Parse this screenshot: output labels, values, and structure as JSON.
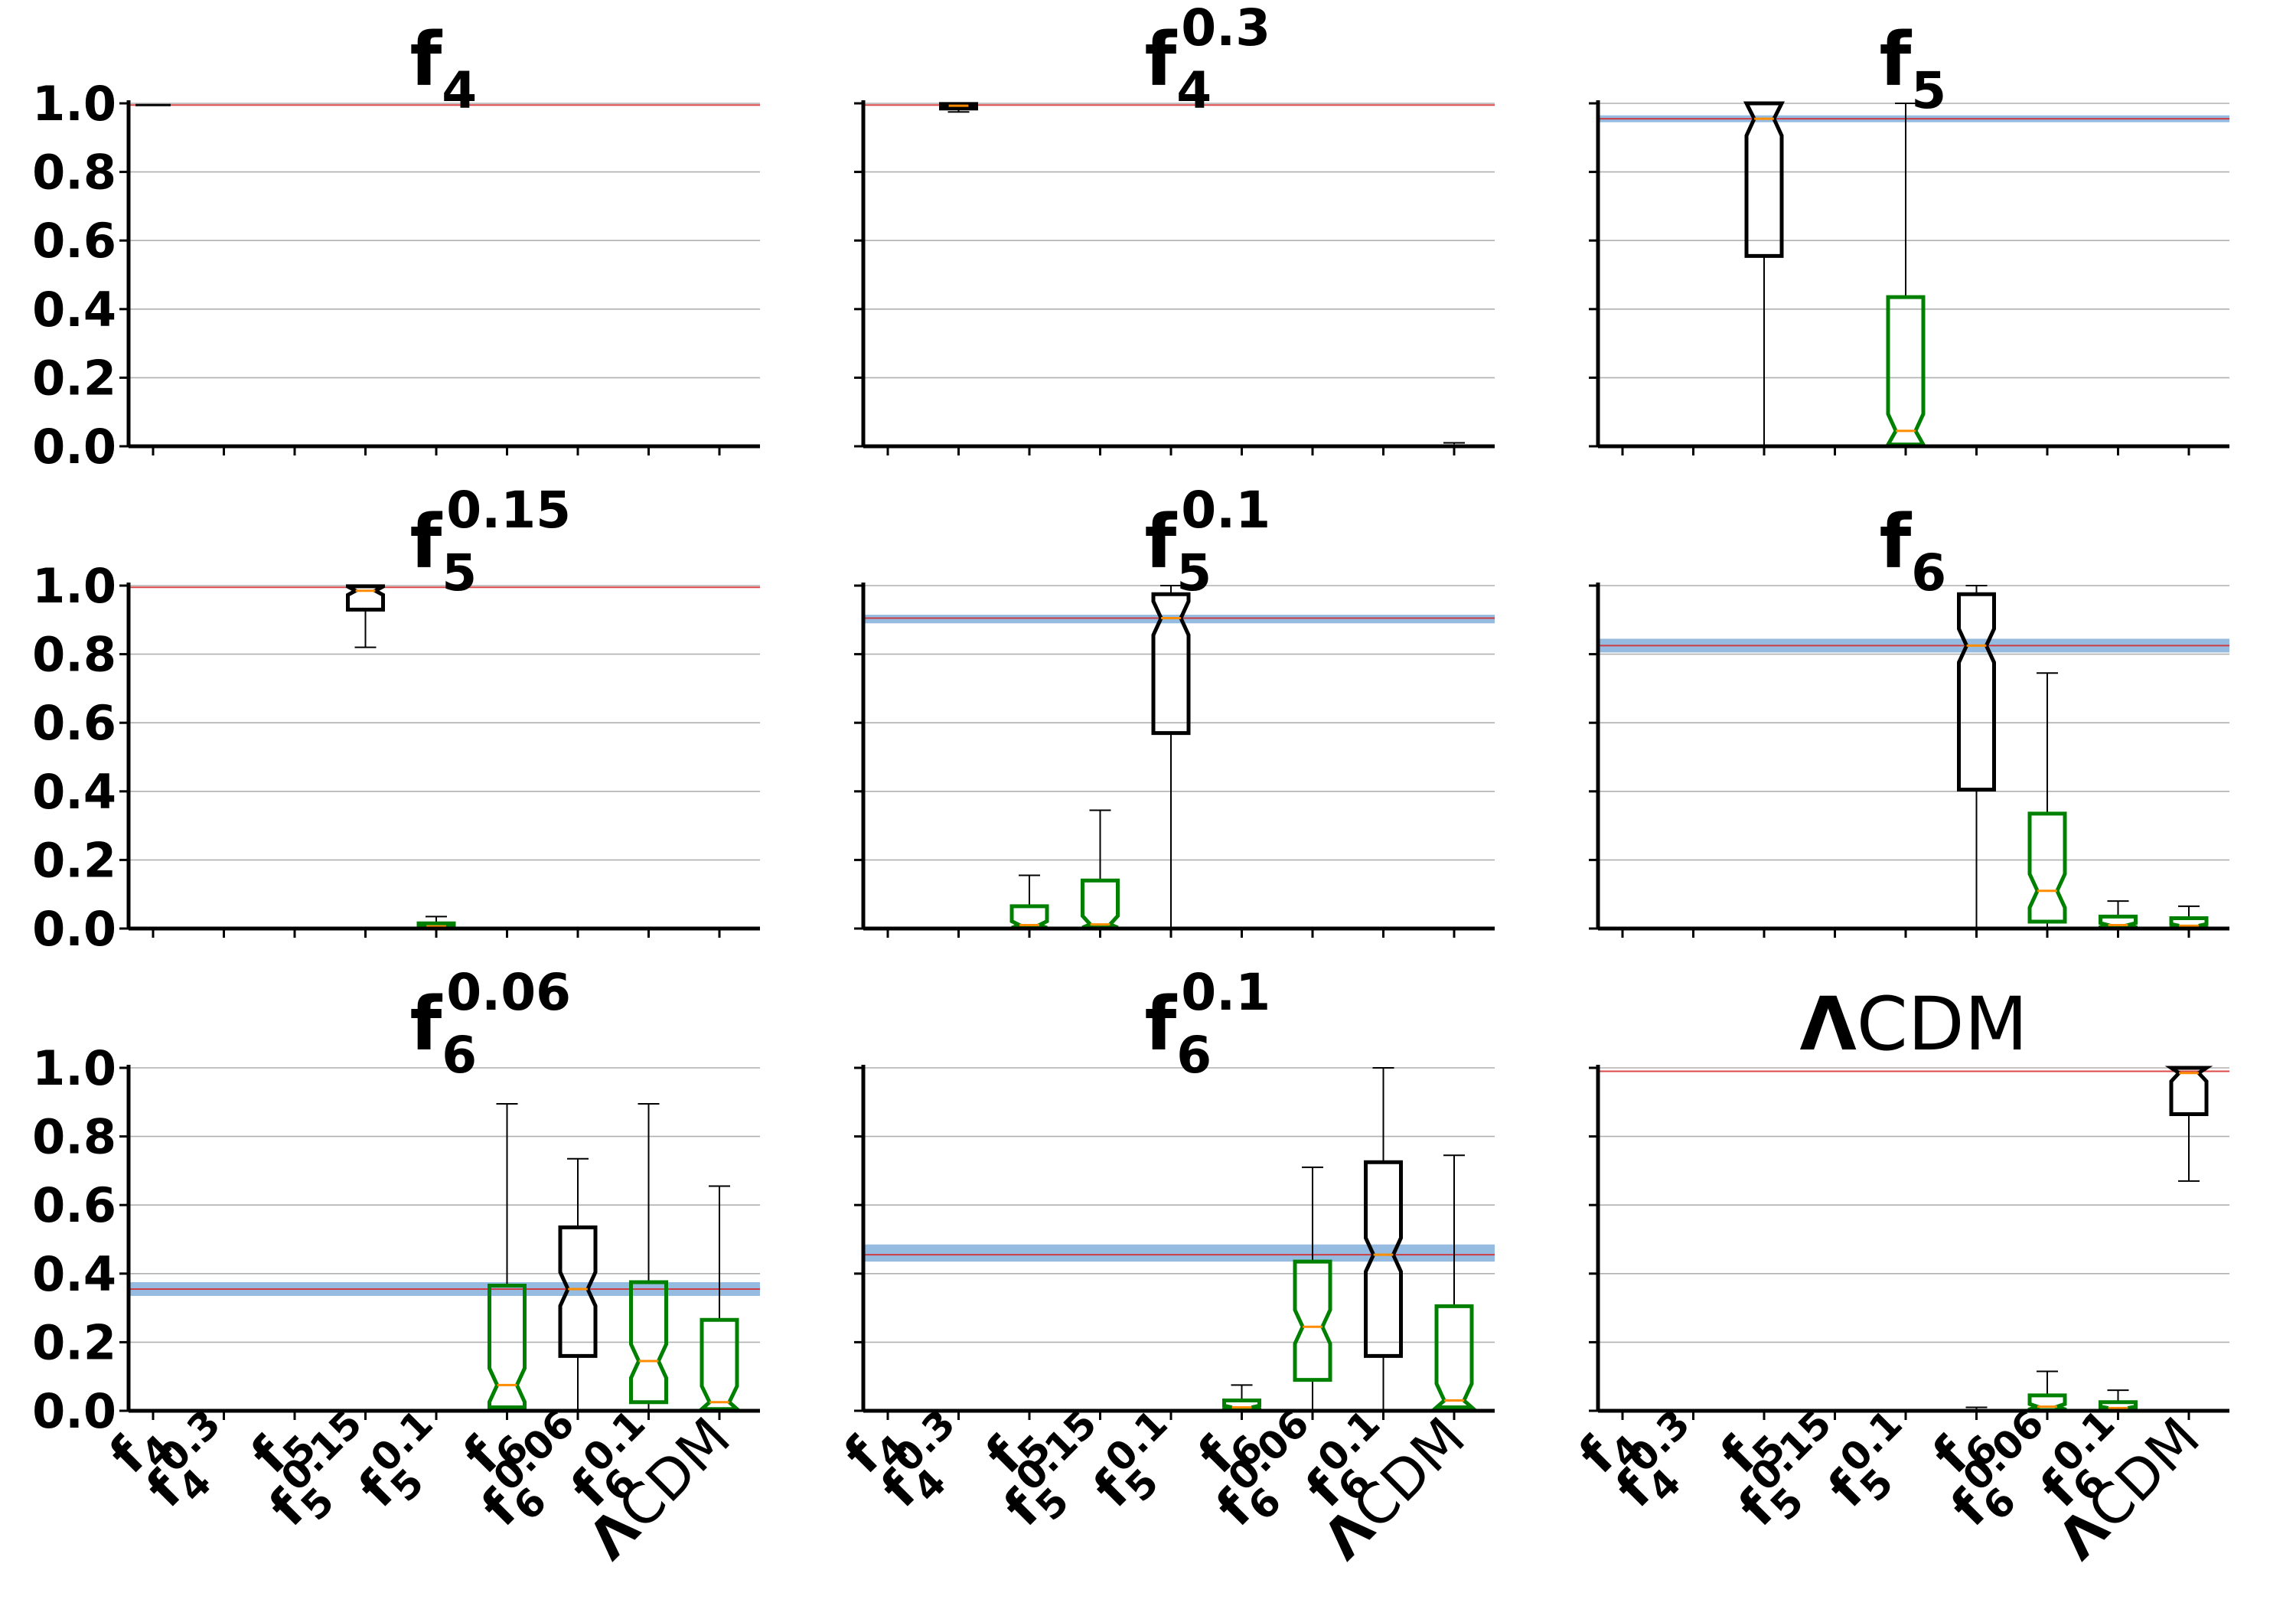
{
  "chart_data": {
    "type": "box",
    "layout": "3x3 grid",
    "y_range": [
      0,
      1
    ],
    "y_ticks": [
      "0.0",
      "0.2",
      "0.4",
      "0.6",
      "0.8",
      "1.0"
    ],
    "categories": [
      {
        "base": "f",
        "sub": "4",
        "sup": ""
      },
      {
        "base": "f",
        "sub": "4",
        "sup": "0.3"
      },
      {
        "base": "f",
        "sub": "5",
        "sup": ""
      },
      {
        "base": "f",
        "sub": "5",
        "sup": "0.15"
      },
      {
        "base": "f",
        "sub": "5",
        "sup": "0.1"
      },
      {
        "base": "f",
        "sub": "6",
        "sup": ""
      },
      {
        "base": "f",
        "sub": "6",
        "sup": "0.06"
      },
      {
        "base": "f",
        "sub": "6",
        "sup": "0.1"
      },
      {
        "base": "Λ",
        "sub": "",
        "sup": "",
        "rest": "CDM"
      }
    ],
    "colors": {
      "true_model_box": "#000000",
      "other_box": "#008000",
      "median": "#ff8c00",
      "reference_line": "#d62728",
      "band": "#7aaad8",
      "grid": "#b0b0b0"
    },
    "panels": [
      {
        "title": {
          "base": "f",
          "sub": "4",
          "sup": ""
        },
        "reference": 0.995,
        "band": null,
        "boxes": [
          {
            "cat": 0,
            "q1": 0.995,
            "med": 0.998,
            "q3": 1.0,
            "wlo": 0.995,
            "whi": 1.0,
            "color": "black"
          },
          {
            "cat": 1,
            "q1": 0,
            "med": 0,
            "q3": 0.001,
            "wlo": 0,
            "whi": 0.001,
            "color": "green"
          },
          {
            "cat": 2,
            "q1": 0,
            "med": 0,
            "q3": 0.001,
            "wlo": 0,
            "whi": 0.001,
            "color": "green"
          },
          {
            "cat": 3,
            "q1": 0,
            "med": 0,
            "q3": 0.001,
            "wlo": 0,
            "whi": 0.001,
            "color": "green"
          },
          {
            "cat": 4,
            "q1": 0,
            "med": 0,
            "q3": 0.001,
            "wlo": 0,
            "whi": 0.001,
            "color": "green"
          },
          {
            "cat": 5,
            "q1": 0,
            "med": 0,
            "q3": 0.001,
            "wlo": 0,
            "whi": 0.001,
            "color": "green"
          },
          {
            "cat": 6,
            "q1": 0,
            "med": 0,
            "q3": 0.001,
            "wlo": 0,
            "whi": 0.001,
            "color": "green"
          },
          {
            "cat": 7,
            "q1": 0,
            "med": 0,
            "q3": 0.001,
            "wlo": 0,
            "whi": 0.001,
            "color": "green"
          },
          {
            "cat": 8,
            "q1": 0,
            "med": 0,
            "q3": 0.001,
            "wlo": 0,
            "whi": 0.001,
            "color": "green"
          }
        ]
      },
      {
        "title": {
          "base": "f",
          "sub": "4",
          "sup": "0.3"
        },
        "reference": 0.995,
        "band": null,
        "boxes": [
          {
            "cat": 0,
            "q1": 0,
            "med": 0,
            "q3": 0.001,
            "wlo": 0,
            "whi": 0.001,
            "color": "green"
          },
          {
            "cat": 1,
            "q1": 0.985,
            "med": 0.993,
            "q3": 0.998,
            "wlo": 0.975,
            "whi": 1.0,
            "color": "black"
          },
          {
            "cat": 2,
            "q1": 0,
            "med": 0,
            "q3": 0.001,
            "wlo": 0,
            "whi": 0.001,
            "color": "green"
          },
          {
            "cat": 3,
            "q1": 0,
            "med": 0,
            "q3": 0.001,
            "wlo": 0,
            "whi": 0.001,
            "color": "green"
          },
          {
            "cat": 4,
            "q1": 0,
            "med": 0,
            "q3": 0.001,
            "wlo": 0,
            "whi": 0.001,
            "color": "green"
          },
          {
            "cat": 5,
            "q1": 0,
            "med": 0,
            "q3": 0.001,
            "wlo": 0,
            "whi": 0.001,
            "color": "green"
          },
          {
            "cat": 6,
            "q1": 0,
            "med": 0,
            "q3": 0.001,
            "wlo": 0,
            "whi": 0.001,
            "color": "green"
          },
          {
            "cat": 7,
            "q1": 0,
            "med": 0,
            "q3": 0.001,
            "wlo": 0,
            "whi": 0.001,
            "color": "green"
          },
          {
            "cat": 8,
            "q1": 0,
            "med": 0.002,
            "q3": 0.006,
            "wlo": 0,
            "whi": 0.01,
            "color": "green"
          }
        ]
      },
      {
        "title": {
          "base": "f",
          "sub": "5",
          "sup": ""
        },
        "reference": 0.955,
        "band": [
          0.945,
          0.965
        ],
        "boxes": [
          {
            "cat": 0,
            "q1": 0,
            "med": 0,
            "q3": 0.001,
            "wlo": 0,
            "whi": 0.001,
            "color": "green"
          },
          {
            "cat": 1,
            "q1": 0,
            "med": 0,
            "q3": 0.001,
            "wlo": 0,
            "whi": 0.001,
            "color": "green"
          },
          {
            "cat": 2,
            "q1": 0.555,
            "med": 0.955,
            "q3": 1.0,
            "wlo": 0.0,
            "whi": 1.0,
            "color": "black"
          },
          {
            "cat": 3,
            "q1": 0,
            "med": 0,
            "q3": 0.001,
            "wlo": 0,
            "whi": 0.001,
            "color": "green"
          },
          {
            "cat": 4,
            "q1": 0.005,
            "med": 0.045,
            "q3": 0.435,
            "wlo": 0.0,
            "whi": 1.0,
            "color": "green"
          },
          {
            "cat": 5,
            "q1": 0,
            "med": 0,
            "q3": 0.001,
            "wlo": 0,
            "whi": 0.001,
            "color": "green"
          },
          {
            "cat": 6,
            "q1": 0,
            "med": 0,
            "q3": 0.001,
            "wlo": 0,
            "whi": 0.001,
            "color": "green"
          },
          {
            "cat": 7,
            "q1": 0,
            "med": 0,
            "q3": 0.001,
            "wlo": 0,
            "whi": 0.001,
            "color": "green"
          },
          {
            "cat": 8,
            "q1": 0,
            "med": 0,
            "q3": 0.001,
            "wlo": 0,
            "whi": 0.001,
            "color": "green"
          }
        ]
      },
      {
        "title": {
          "base": "f",
          "sub": "5",
          "sup": "0.15"
        },
        "reference": 0.995,
        "band": null,
        "boxes": [
          {
            "cat": 0,
            "q1": 0,
            "med": 0,
            "q3": 0.001,
            "wlo": 0,
            "whi": 0.001,
            "color": "green"
          },
          {
            "cat": 1,
            "q1": 0,
            "med": 0,
            "q3": 0.001,
            "wlo": 0,
            "whi": 0.001,
            "color": "green"
          },
          {
            "cat": 2,
            "q1": 0,
            "med": 0,
            "q3": 0.001,
            "wlo": 0,
            "whi": 0.001,
            "color": "green"
          },
          {
            "cat": 3,
            "q1": 0.93,
            "med": 0.985,
            "q3": 0.998,
            "wlo": 0.82,
            "whi": 1.0,
            "color": "black"
          },
          {
            "cat": 4,
            "q1": 0.002,
            "med": 0.006,
            "q3": 0.015,
            "wlo": 0,
            "whi": 0.035,
            "color": "green"
          },
          {
            "cat": 5,
            "q1": 0,
            "med": 0,
            "q3": 0.002,
            "wlo": 0,
            "whi": 0.004,
            "color": "green"
          },
          {
            "cat": 6,
            "q1": 0,
            "med": 0,
            "q3": 0.001,
            "wlo": 0,
            "whi": 0.002,
            "color": "green"
          },
          {
            "cat": 7,
            "q1": 0,
            "med": 0,
            "q3": 0.001,
            "wlo": 0,
            "whi": 0.001,
            "color": "green"
          },
          {
            "cat": 8,
            "q1": 0,
            "med": 0,
            "q3": 0.002,
            "wlo": 0,
            "whi": 0.003,
            "color": "green"
          }
        ]
      },
      {
        "title": {
          "base": "f",
          "sub": "5",
          "sup": "0.1"
        },
        "reference": 0.905,
        "band": [
          0.89,
          0.915
        ],
        "boxes": [
          {
            "cat": 0,
            "q1": 0,
            "med": 0,
            "q3": 0.001,
            "wlo": 0,
            "whi": 0.001,
            "color": "green"
          },
          {
            "cat": 1,
            "q1": 0,
            "med": 0,
            "q3": 0.001,
            "wlo": 0,
            "whi": 0.001,
            "color": "green"
          },
          {
            "cat": 2,
            "q1": 0.002,
            "med": 0.01,
            "q3": 0.065,
            "wlo": 0,
            "whi": 0.155,
            "color": "green"
          },
          {
            "cat": 3,
            "q1": 0.003,
            "med": 0.012,
            "q3": 0.14,
            "wlo": 0,
            "whi": 0.345,
            "color": "green"
          },
          {
            "cat": 4,
            "q1": 0.57,
            "med": 0.905,
            "q3": 0.975,
            "wlo": 0.0,
            "whi": 1.0,
            "color": "black"
          },
          {
            "cat": 5,
            "q1": 0,
            "med": 0,
            "q3": 0.001,
            "wlo": 0,
            "whi": 0.001,
            "color": "green"
          },
          {
            "cat": 6,
            "q1": 0,
            "med": 0,
            "q3": 0.001,
            "wlo": 0,
            "whi": 0.001,
            "color": "green"
          },
          {
            "cat": 7,
            "q1": 0,
            "med": 0,
            "q3": 0.001,
            "wlo": 0,
            "whi": 0.001,
            "color": "green"
          },
          {
            "cat": 8,
            "q1": 0,
            "med": 0,
            "q3": 0.001,
            "wlo": 0,
            "whi": 0.001,
            "color": "green"
          }
        ]
      },
      {
        "title": {
          "base": "f",
          "sub": "6",
          "sup": ""
        },
        "reference": 0.825,
        "band": [
          0.805,
          0.845
        ],
        "boxes": [
          {
            "cat": 0,
            "q1": 0,
            "med": 0,
            "q3": 0.001,
            "wlo": 0,
            "whi": 0.001,
            "color": "green"
          },
          {
            "cat": 1,
            "q1": 0,
            "med": 0,
            "q3": 0.001,
            "wlo": 0,
            "whi": 0.001,
            "color": "green"
          },
          {
            "cat": 2,
            "q1": 0,
            "med": 0,
            "q3": 0.001,
            "wlo": 0,
            "whi": 0.001,
            "color": "green"
          },
          {
            "cat": 3,
            "q1": 0,
            "med": 0,
            "q3": 0.002,
            "wlo": 0,
            "whi": 0.003,
            "color": "green"
          },
          {
            "cat": 4,
            "q1": 0,
            "med": 0,
            "q3": 0.001,
            "wlo": 0,
            "whi": 0.001,
            "color": "green"
          },
          {
            "cat": 5,
            "q1": 0.405,
            "med": 0.825,
            "q3": 0.975,
            "wlo": 0.0,
            "whi": 1.0,
            "color": "black"
          },
          {
            "cat": 6,
            "q1": 0.02,
            "med": 0.11,
            "q3": 0.335,
            "wlo": 0,
            "whi": 0.745,
            "color": "green"
          },
          {
            "cat": 7,
            "q1": 0.002,
            "med": 0.01,
            "q3": 0.035,
            "wlo": 0,
            "whi": 0.08,
            "color": "green"
          },
          {
            "cat": 8,
            "q1": 0.002,
            "med": 0.008,
            "q3": 0.03,
            "wlo": 0,
            "whi": 0.065,
            "color": "green"
          }
        ]
      },
      {
        "title": {
          "base": "f",
          "sub": "6",
          "sup": "0.06"
        },
        "reference": 0.355,
        "band": [
          0.335,
          0.375
        ],
        "boxes": [
          {
            "cat": 0,
            "q1": 0,
            "med": 0,
            "q3": 0.001,
            "wlo": 0,
            "whi": 0.001,
            "color": "green"
          },
          {
            "cat": 1,
            "q1": 0,
            "med": 0,
            "q3": 0.001,
            "wlo": 0,
            "whi": 0.001,
            "color": "green"
          },
          {
            "cat": 2,
            "q1": 0,
            "med": 0,
            "q3": 0.001,
            "wlo": 0,
            "whi": 0.001,
            "color": "green"
          },
          {
            "cat": 3,
            "q1": 0,
            "med": 0,
            "q3": 0.001,
            "wlo": 0,
            "whi": 0.001,
            "color": "green"
          },
          {
            "cat": 4,
            "q1": 0,
            "med": 0,
            "q3": 0.001,
            "wlo": 0,
            "whi": 0.001,
            "color": "green"
          },
          {
            "cat": 5,
            "q1": 0.01,
            "med": 0.075,
            "q3": 0.365,
            "wlo": 0,
            "whi": 0.895,
            "color": "green"
          },
          {
            "cat": 6,
            "q1": 0.16,
            "med": 0.355,
            "q3": 0.535,
            "wlo": 0.0,
            "whi": 0.735,
            "color": "black"
          },
          {
            "cat": 7,
            "q1": 0.025,
            "med": 0.145,
            "q3": 0.375,
            "wlo": 0,
            "whi": 0.895,
            "color": "green"
          },
          {
            "cat": 8,
            "q1": 0.005,
            "med": 0.025,
            "q3": 0.265,
            "wlo": 0,
            "whi": 0.655,
            "color": "green"
          }
        ]
      },
      {
        "title": {
          "base": "f",
          "sub": "6",
          "sup": "0.1"
        },
        "reference": 0.455,
        "band": [
          0.435,
          0.485
        ],
        "boxes": [
          {
            "cat": 0,
            "q1": 0,
            "med": 0,
            "q3": 0.001,
            "wlo": 0,
            "whi": 0.001,
            "color": "green"
          },
          {
            "cat": 1,
            "q1": 0,
            "med": 0,
            "q3": 0.001,
            "wlo": 0,
            "whi": 0.001,
            "color": "green"
          },
          {
            "cat": 2,
            "q1": 0,
            "med": 0,
            "q3": 0.001,
            "wlo": 0,
            "whi": 0.001,
            "color": "green"
          },
          {
            "cat": 3,
            "q1": 0,
            "med": 0,
            "q3": 0.001,
            "wlo": 0,
            "whi": 0.001,
            "color": "green"
          },
          {
            "cat": 4,
            "q1": 0,
            "med": 0,
            "q3": 0.001,
            "wlo": 0,
            "whi": 0.001,
            "color": "green"
          },
          {
            "cat": 5,
            "q1": 0.002,
            "med": 0.01,
            "q3": 0.03,
            "wlo": 0,
            "whi": 0.075,
            "color": "green"
          },
          {
            "cat": 6,
            "q1": 0.09,
            "med": 0.245,
            "q3": 0.435,
            "wlo": 0,
            "whi": 0.71,
            "color": "green"
          },
          {
            "cat": 7,
            "q1": 0.16,
            "med": 0.455,
            "q3": 0.725,
            "wlo": 0.0,
            "whi": 1.0,
            "color": "black"
          },
          {
            "cat": 8,
            "q1": 0.01,
            "med": 0.03,
            "q3": 0.305,
            "wlo": 0,
            "whi": 0.745,
            "color": "green"
          }
        ]
      },
      {
        "title": {
          "base": "Λ",
          "sub": "",
          "sup": "",
          "rest": "CDM"
        },
        "reference": 0.99,
        "band": null,
        "boxes": [
          {
            "cat": 0,
            "q1": 0,
            "med": 0,
            "q3": 0.001,
            "wlo": 0,
            "whi": 0.001,
            "color": "green"
          },
          {
            "cat": 1,
            "q1": 0,
            "med": 0,
            "q3": 0.001,
            "wlo": 0,
            "whi": 0.001,
            "color": "green"
          },
          {
            "cat": 2,
            "q1": 0,
            "med": 0,
            "q3": 0.001,
            "wlo": 0,
            "whi": 0.001,
            "color": "green"
          },
          {
            "cat": 3,
            "q1": 0,
            "med": 0,
            "q3": 0.001,
            "wlo": 0,
            "whi": 0.001,
            "color": "green"
          },
          {
            "cat": 4,
            "q1": 0,
            "med": 0,
            "q3": 0.001,
            "wlo": 0,
            "whi": 0.001,
            "color": "green"
          },
          {
            "cat": 5,
            "q1": 0,
            "med": 0.002,
            "q3": 0.005,
            "wlo": 0,
            "whi": 0.01,
            "color": "green"
          },
          {
            "cat": 6,
            "q1": 0.002,
            "med": 0.012,
            "q3": 0.045,
            "wlo": 0,
            "whi": 0.115,
            "color": "green"
          },
          {
            "cat": 7,
            "q1": 0.002,
            "med": 0.008,
            "q3": 0.025,
            "wlo": 0,
            "whi": 0.06,
            "color": "green"
          },
          {
            "cat": 8,
            "q1": 0.865,
            "med": 0.985,
            "q3": 1.0,
            "wlo": 0.67,
            "whi": 1.0,
            "color": "black"
          }
        ]
      }
    ]
  }
}
